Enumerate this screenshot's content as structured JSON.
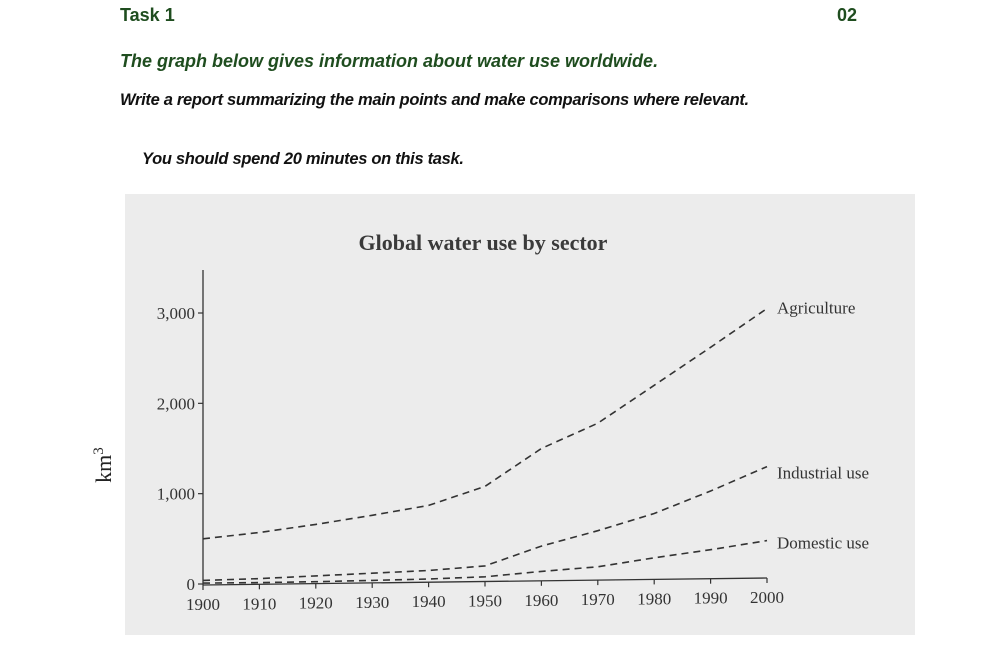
{
  "header": {
    "task_label": "Task 1",
    "page_number": "02"
  },
  "prompt": {
    "intro": "The graph below gives information about water use worldwide.",
    "instruction": "Write a report summarizing the main points and make comparisons where relevant.",
    "time_note": "You should spend 20 minutes on this task."
  },
  "chart_data": {
    "type": "line",
    "title": "Global water use by sector",
    "ylabel": "km",
    "ylabel_superscript": "3",
    "xlabel": "",
    "ylim": [
      0,
      3000
    ],
    "xlim": [
      1900,
      2000
    ],
    "x_ticks": [
      "1900",
      "1910",
      "1920",
      "1930",
      "1940",
      "1950",
      "1960",
      "1970",
      "1980",
      "1990",
      "2000"
    ],
    "y_ticks": [
      {
        "value": 0,
        "label": "0"
      },
      {
        "value": 1000,
        "label": "1,000"
      },
      {
        "value": 2000,
        "label": "2,000"
      },
      {
        "value": 3000,
        "label": "3,000"
      }
    ],
    "line_style": "dashed",
    "grid": false,
    "colors": {
      "background": "#ececec",
      "line": "#333333"
    },
    "x": [
      1900,
      1910,
      1920,
      1930,
      1940,
      1950,
      1960,
      1970,
      1980,
      1990,
      2000
    ],
    "series": [
      {
        "name": "Agriculture",
        "values": [
          500,
          570,
          660,
          760,
          870,
          1080,
          1500,
          1780,
          2200,
          2620,
          3050
        ]
      },
      {
        "name": "Industrial use",
        "values": [
          40,
          60,
          90,
          120,
          150,
          200,
          420,
          590,
          780,
          1030,
          1300
        ]
      },
      {
        "name": "Domestic use",
        "values": [
          10,
          15,
          25,
          40,
          55,
          80,
          140,
          190,
          290,
          380,
          480
        ]
      }
    ]
  }
}
